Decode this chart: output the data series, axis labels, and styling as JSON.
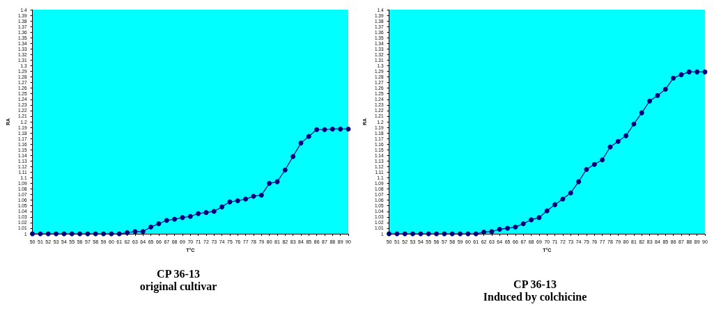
{
  "chart_data": [
    {
      "type": "line",
      "title": "CP 36-13",
      "subtitle": "original cultivar",
      "xlabel": "T°C",
      "ylabel": "RA",
      "categories": [
        "50",
        "51",
        "52",
        "53",
        "54",
        "55",
        "56",
        "57",
        "58",
        "59",
        "60",
        "61",
        "62",
        "63",
        "64",
        "65",
        "66",
        "67",
        "68",
        "69",
        "70",
        "71",
        "72",
        "73",
        "74",
        "75",
        "76",
        "77",
        "78",
        "79",
        "80",
        "81",
        "82",
        "83",
        "84",
        "85",
        "86",
        "87",
        "88",
        "89",
        "90"
      ],
      "series": [
        {
          "color": "#000080",
          "values": [
            1,
            1,
            1,
            1,
            1,
            1,
            1,
            1,
            1,
            1,
            1,
            1,
            1.002,
            1.004,
            1.004,
            1.012,
            1.018,
            1.024,
            1.026,
            1.029,
            1.031,
            1.036,
            1.038,
            1.04,
            1.048,
            1.057,
            1.059,
            1.062,
            1.067,
            1.069,
            1.09,
            1.093,
            1.114,
            1.138,
            1.162,
            1.174,
            1.186,
            1.186,
            1.187,
            1.187,
            1.187
          ]
        }
      ],
      "ylim": [
        1,
        1.4
      ],
      "yticks": [
        1,
        1.01,
        1.02,
        1.03,
        1.04,
        1.05,
        1.06,
        1.07,
        1.08,
        1.09,
        1.1,
        1.11,
        1.12,
        1.13,
        1.14,
        1.15,
        1.16,
        1.17,
        1.18,
        1.19,
        1.2,
        1.21,
        1.22,
        1.23,
        1.24,
        1.25,
        1.26,
        1.27,
        1.28,
        1.29,
        1.3,
        1.31,
        1.32,
        1.33,
        1.34,
        1.35,
        1.36,
        1.37,
        1.38,
        1.39,
        1.4
      ],
      "marker": "circle",
      "line_style": "solid"
    },
    {
      "type": "line",
      "title": "CP 36-13",
      "subtitle": "Induced by colchicine",
      "xlabel": "T°C",
      "ylabel": "RA",
      "categories": [
        "50",
        "51",
        "52",
        "53",
        "54",
        "55",
        "56",
        "57",
        "58",
        "59",
        "60",
        "61",
        "62",
        "63",
        "64",
        "65",
        "66",
        "67",
        "68",
        "69",
        "70",
        "71",
        "72",
        "73",
        "74",
        "75",
        "76",
        "77",
        "78",
        "79",
        "80",
        "81",
        "82",
        "83",
        "84",
        "85",
        "86",
        "87",
        "88",
        "89",
        "90"
      ],
      "series": [
        {
          "color": "#000080",
          "values": [
            1,
            1,
            1,
            1,
            1,
            1,
            1,
            1,
            1,
            1,
            1,
            1,
            1.003,
            1.004,
            1.008,
            1.01,
            1.012,
            1.018,
            1.025,
            1.029,
            1.041,
            1.052,
            1.062,
            1.073,
            1.093,
            1.115,
            1.124,
            1.132,
            1.155,
            1.165,
            1.175,
            1.196,
            1.216,
            1.237,
            1.247,
            1.258,
            1.278,
            1.284,
            1.289,
            1.289,
            1.289
          ]
        }
      ],
      "ylim": [
        1,
        1.4
      ],
      "yticks": [
        1,
        1.01,
        1.02,
        1.03,
        1.04,
        1.05,
        1.06,
        1.07,
        1.08,
        1.09,
        1.1,
        1.11,
        1.12,
        1.13,
        1.14,
        1.15,
        1.16,
        1.17,
        1.18,
        1.19,
        1.2,
        1.21,
        1.22,
        1.23,
        1.24,
        1.25,
        1.26,
        1.27,
        1.28,
        1.29,
        1.3,
        1.31,
        1.32,
        1.33,
        1.34,
        1.35,
        1.36,
        1.37,
        1.38,
        1.39,
        1.4
      ],
      "marker": "circle",
      "line_style": "solid"
    }
  ]
}
